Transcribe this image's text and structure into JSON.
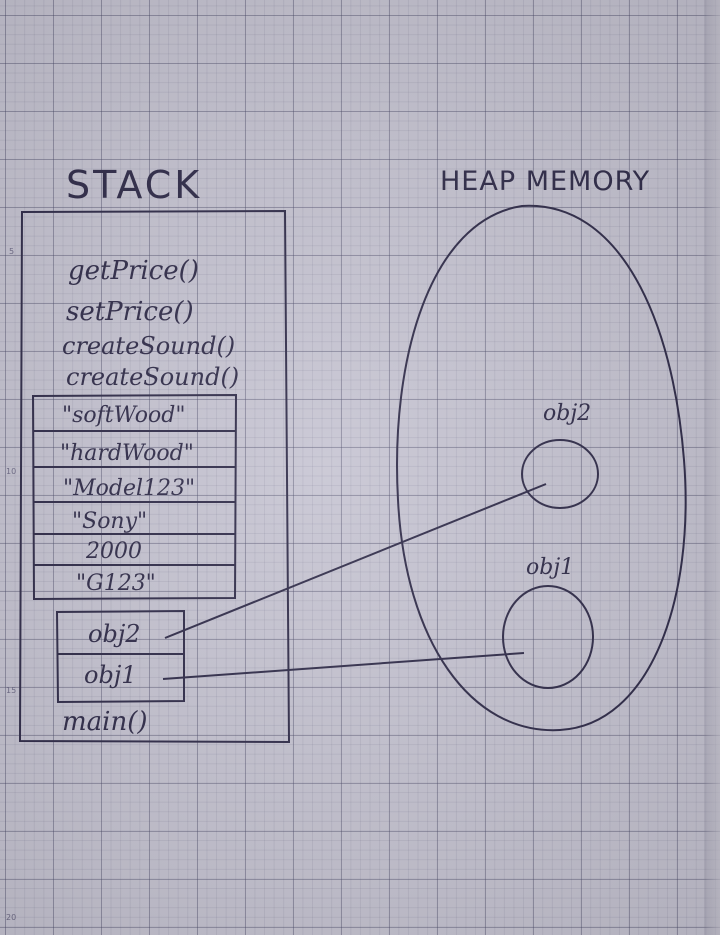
{
  "diagram": {
    "stack_title": "STACK",
    "heap_title": "HEAP MEMORY",
    "stack_methods": [
      "getPrice()",
      "setPrice()",
      "createSound()",
      "createSound()"
    ],
    "stack_values": [
      "\"softWood\"",
      "\"hardWood\"",
      "\"Model123\"",
      "\"Sony\"",
      "2000",
      "\"G123\""
    ],
    "stack_refs": [
      "obj2",
      "obj1"
    ],
    "stack_bottom": "main()",
    "heap_objects": [
      "obj2",
      "obj1"
    ]
  },
  "margin_numbers": [
    "5",
    "10",
    "15",
    "20"
  ],
  "colors": {
    "ink": "#2e2a48",
    "paper": "#c6c4d2",
    "grid": "#464664"
  }
}
